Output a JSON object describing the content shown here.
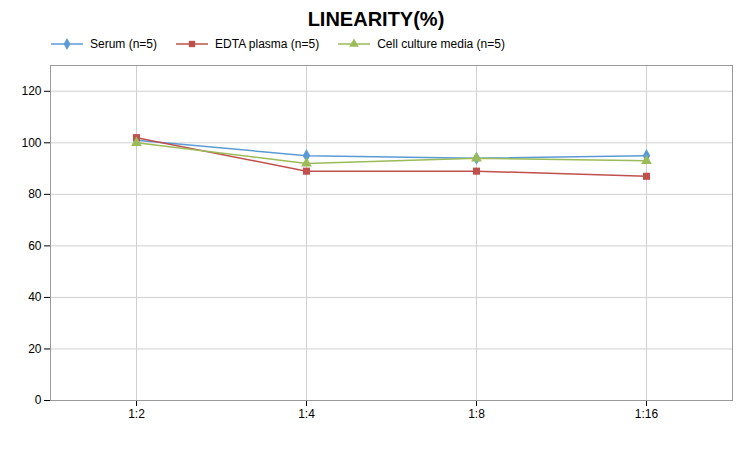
{
  "chart_data": {
    "type": "line",
    "title": "LINEARITY(%)",
    "categories": [
      "1:2",
      "1:4",
      "1:8",
      "1:16"
    ],
    "series": [
      {
        "name": "Serum (n=5)",
        "color": "#5B9BD5",
        "marker": "diamond",
        "values": [
          101,
          95,
          94,
          95
        ]
      },
      {
        "name": "EDTA plasma (n=5)",
        "color": "#C0504D",
        "marker": "square",
        "values": [
          102,
          89,
          89,
          87
        ]
      },
      {
        "name": "Cell culture media (n=5)",
        "color": "#9BBB59",
        "marker": "triangle",
        "values": [
          100,
          92,
          94,
          93
        ]
      }
    ],
    "ylim": [
      0,
      130
    ],
    "yticks": [
      0,
      20,
      40,
      60,
      80,
      100,
      120
    ],
    "grid": true,
    "legend": "upper left"
  }
}
